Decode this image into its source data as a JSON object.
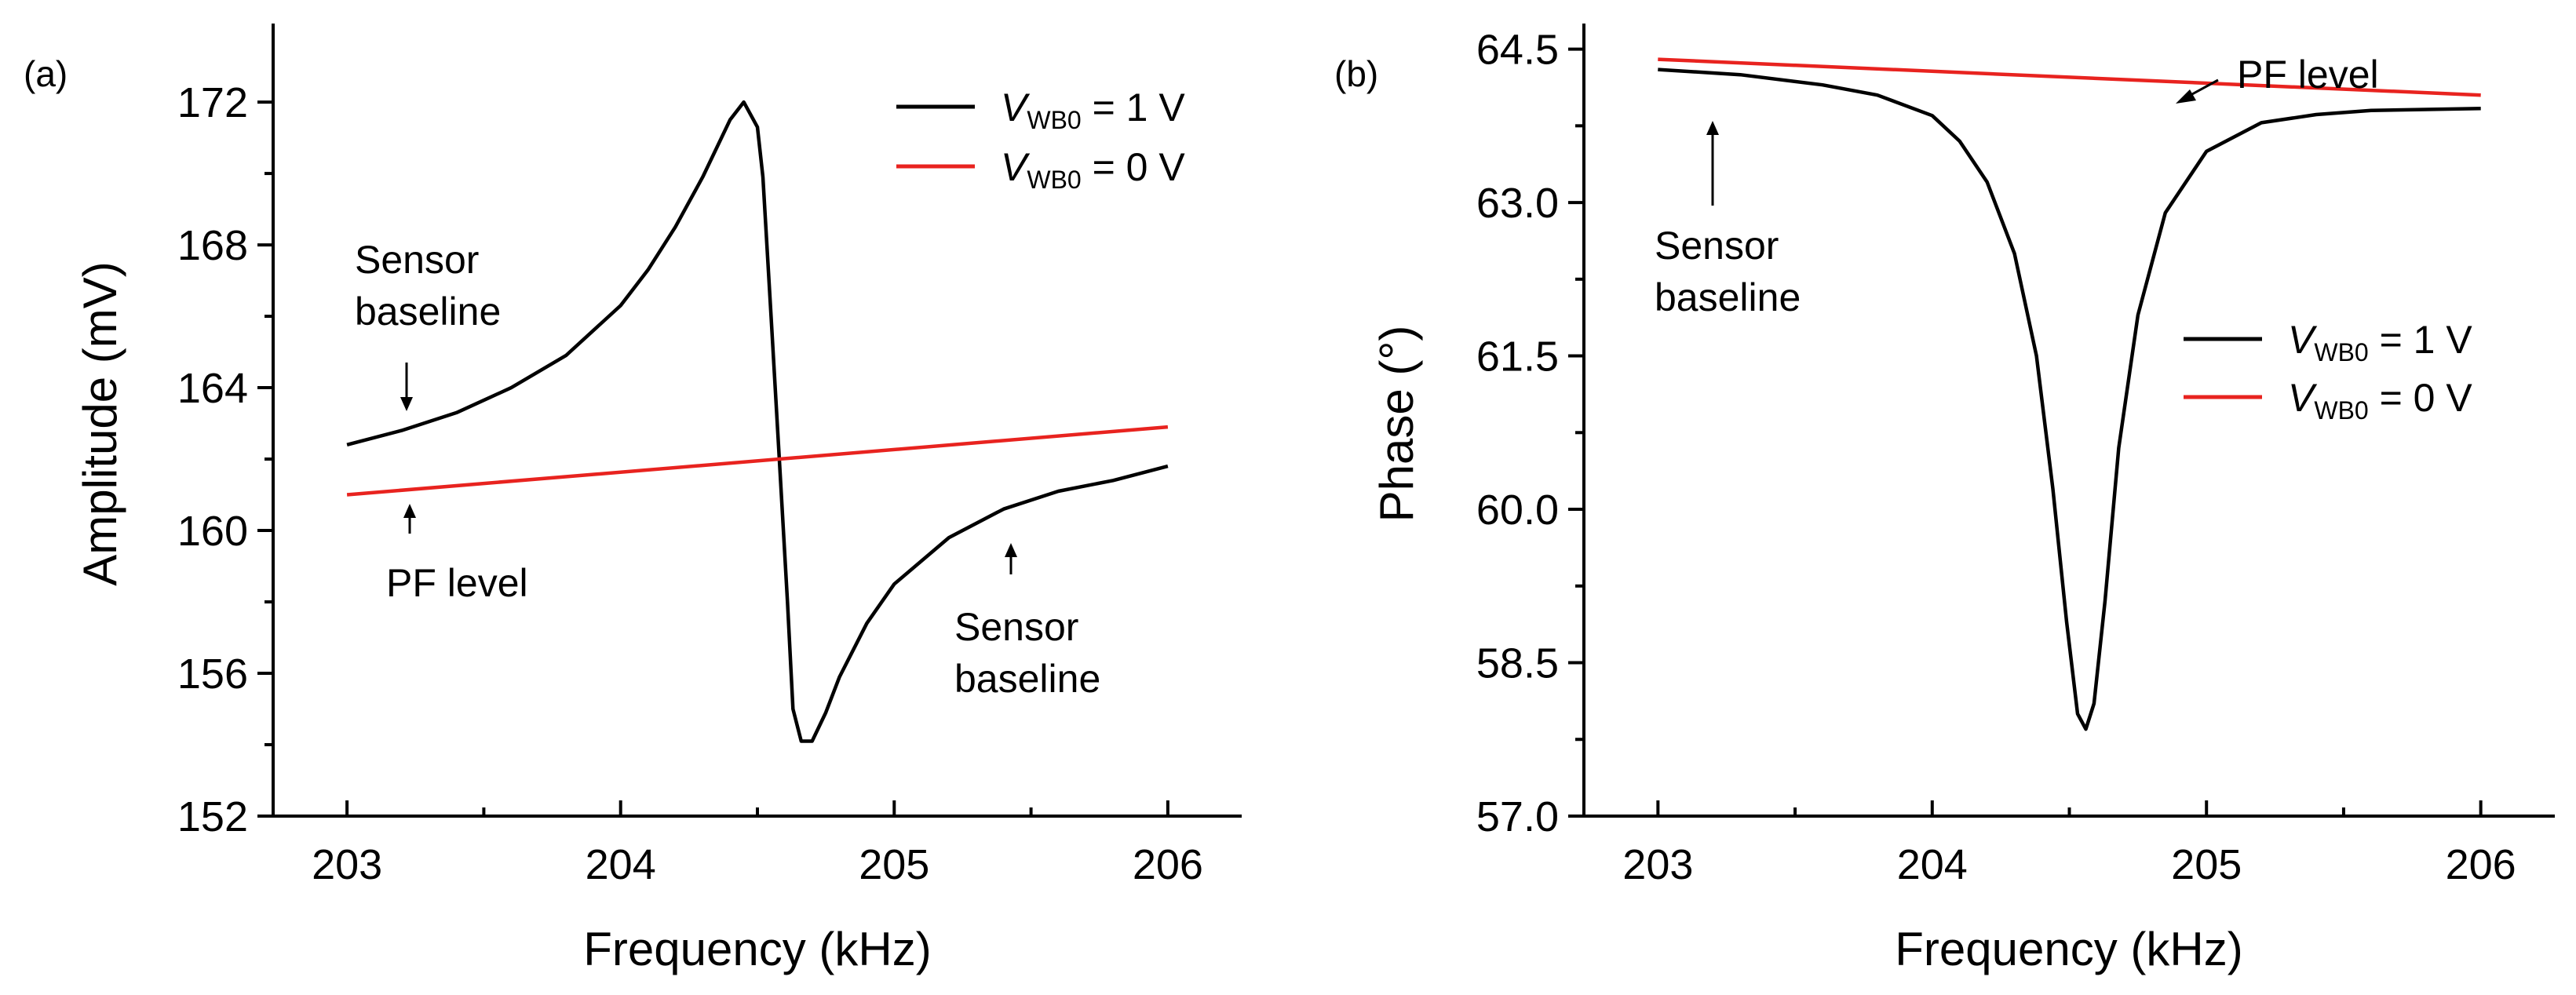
{
  "chart_data": [
    {
      "panel": "(a)",
      "type": "line",
      "xlabel": "Frequency (kHz)",
      "ylabel": "Amplitude (mV)",
      "xlim": [
        202.73,
        206.27
      ],
      "ylim": [
        152,
        174.2
      ],
      "xticks": [
        203,
        204,
        205,
        206
      ],
      "yticks": [
        152,
        156,
        160,
        164,
        168,
        172
      ],
      "legend_position": "top-right",
      "series": [
        {
          "name_var": "V",
          "name_sub": "WB0",
          "name_rest": " = 1 V",
          "color": "#000000",
          "x": [
            203.0,
            203.2,
            203.4,
            203.6,
            203.8,
            204.0,
            204.1,
            204.2,
            204.3,
            204.4,
            204.45,
            204.5,
            204.52,
            204.55,
            204.58,
            204.61,
            204.63,
            204.66,
            204.7,
            204.75,
            204.8,
            204.9,
            205.0,
            205.2,
            205.4,
            205.6,
            205.8,
            206.0
          ],
          "y": [
            162.4,
            162.8,
            163.3,
            164.0,
            164.9,
            166.3,
            167.3,
            168.5,
            169.9,
            171.5,
            172.0,
            171.3,
            169.9,
            166.0,
            162.0,
            158.0,
            155.0,
            154.1,
            154.1,
            154.9,
            155.9,
            157.4,
            158.5,
            159.8,
            160.6,
            161.1,
            161.4,
            161.8
          ]
        },
        {
          "name_var": "V",
          "name_sub": "WB0",
          "name_rest": " = 0 V",
          "color": "#e8231f",
          "x": [
            203.0,
            206.0
          ],
          "y": [
            161.0,
            162.9
          ]
        }
      ],
      "annotations": [
        {
          "lines": [
            "Sensor",
            "baseline"
          ],
          "arrow_to": [
            203.26,
            163.0
          ]
        },
        {
          "lines": [
            "PF level"
          ],
          "arrow_to": [
            203.26,
            161.1
          ]
        },
        {
          "lines": [
            "Sensor",
            "baseline"
          ],
          "arrow_to": [
            205.38,
            160.5
          ]
        }
      ]
    },
    {
      "panel": "(b)",
      "type": "line",
      "xlabel": "Frequency (kHz)",
      "ylabel": "Phase (°)",
      "xlim": [
        202.73,
        206.27
      ],
      "ylim": [
        57.0,
        64.75
      ],
      "xticks": [
        203,
        204,
        205,
        206
      ],
      "yticks": [
        "57.0",
        "58.5",
        "60.0",
        "61.5",
        "63.0",
        "64.5"
      ],
      "legend_position": "center-right",
      "series": [
        {
          "name_var": "V",
          "name_sub": "WB0",
          "name_rest": " = 1 V",
          "color": "#000000",
          "x": [
            203.0,
            203.3,
            203.6,
            203.8,
            204.0,
            204.1,
            204.2,
            204.3,
            204.38,
            204.44,
            204.49,
            204.53,
            204.56,
            204.59,
            204.63,
            204.68,
            204.75,
            204.85,
            205.0,
            205.2,
            205.4,
            205.6,
            205.8,
            206.0
          ],
          "y": [
            64.3,
            64.25,
            64.15,
            64.05,
            63.85,
            63.6,
            63.2,
            62.5,
            61.5,
            60.2,
            58.9,
            58.0,
            57.85,
            58.1,
            59.1,
            60.6,
            61.9,
            62.9,
            63.5,
            63.78,
            63.86,
            63.9,
            63.91,
            63.92
          ]
        },
        {
          "name_var": "V",
          "name_sub": "WB0",
          "name_rest": " = 0 V",
          "color": "#e8231f",
          "x": [
            203.0,
            206.0
          ],
          "y": [
            64.4,
            64.05
          ]
        }
      ],
      "annotations": [
        {
          "lines": [
            "Sensor",
            "baseline"
          ],
          "arrow_to": [
            203.18,
            64.3
          ]
        },
        {
          "lines": [
            "PF level"
          ],
          "arrow_to": [
            204.8,
            64.22
          ]
        }
      ]
    }
  ]
}
